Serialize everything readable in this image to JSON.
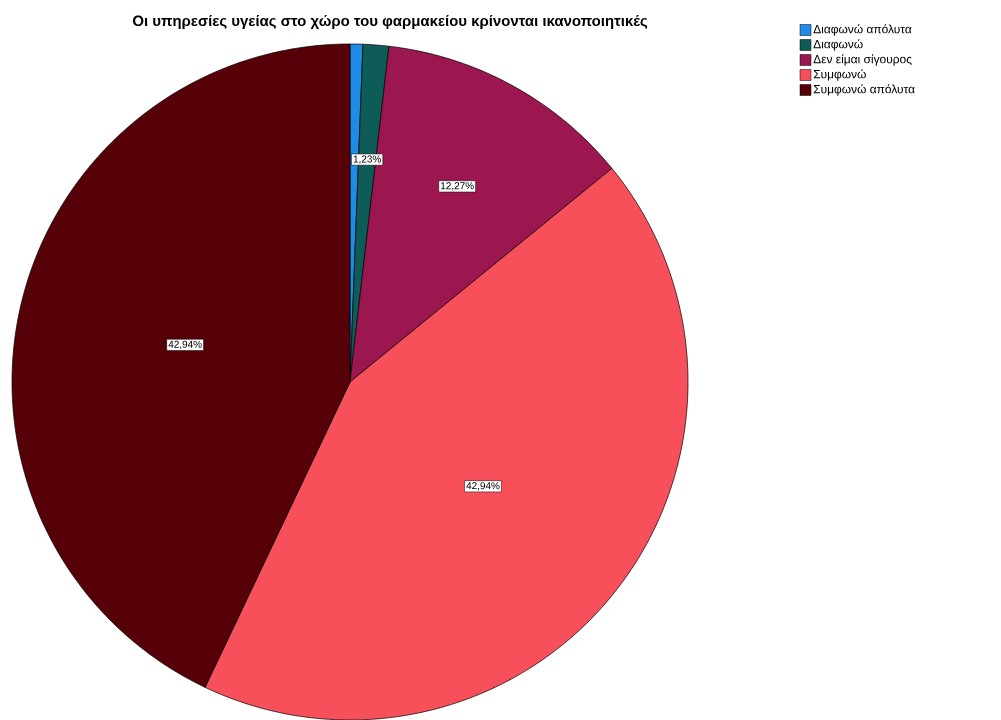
{
  "chart_data": {
    "type": "pie",
    "title": "Οι υπηρεσίες υγείας στο χώρο του φαρμακείου κρίνονται ικανοποιητικές",
    "categories": [
      "Διαφωνώ απόλυτα",
      "Διαφωνώ",
      "Δεν είμαι σίγουρος",
      "Συμφωνώ",
      "Συμφωνώ απόλυτα"
    ],
    "values": [
      0.61,
      1.23,
      12.27,
      42.94,
      42.94
    ],
    "value_labels": [
      null,
      "1,23%",
      "12,27%",
      "42,94%",
      "42,94%"
    ],
    "colors": [
      "#1e8ce6",
      "#0e5c58",
      "#9c1650",
      "#f8505a",
      "#560008"
    ],
    "legend": "top right"
  }
}
